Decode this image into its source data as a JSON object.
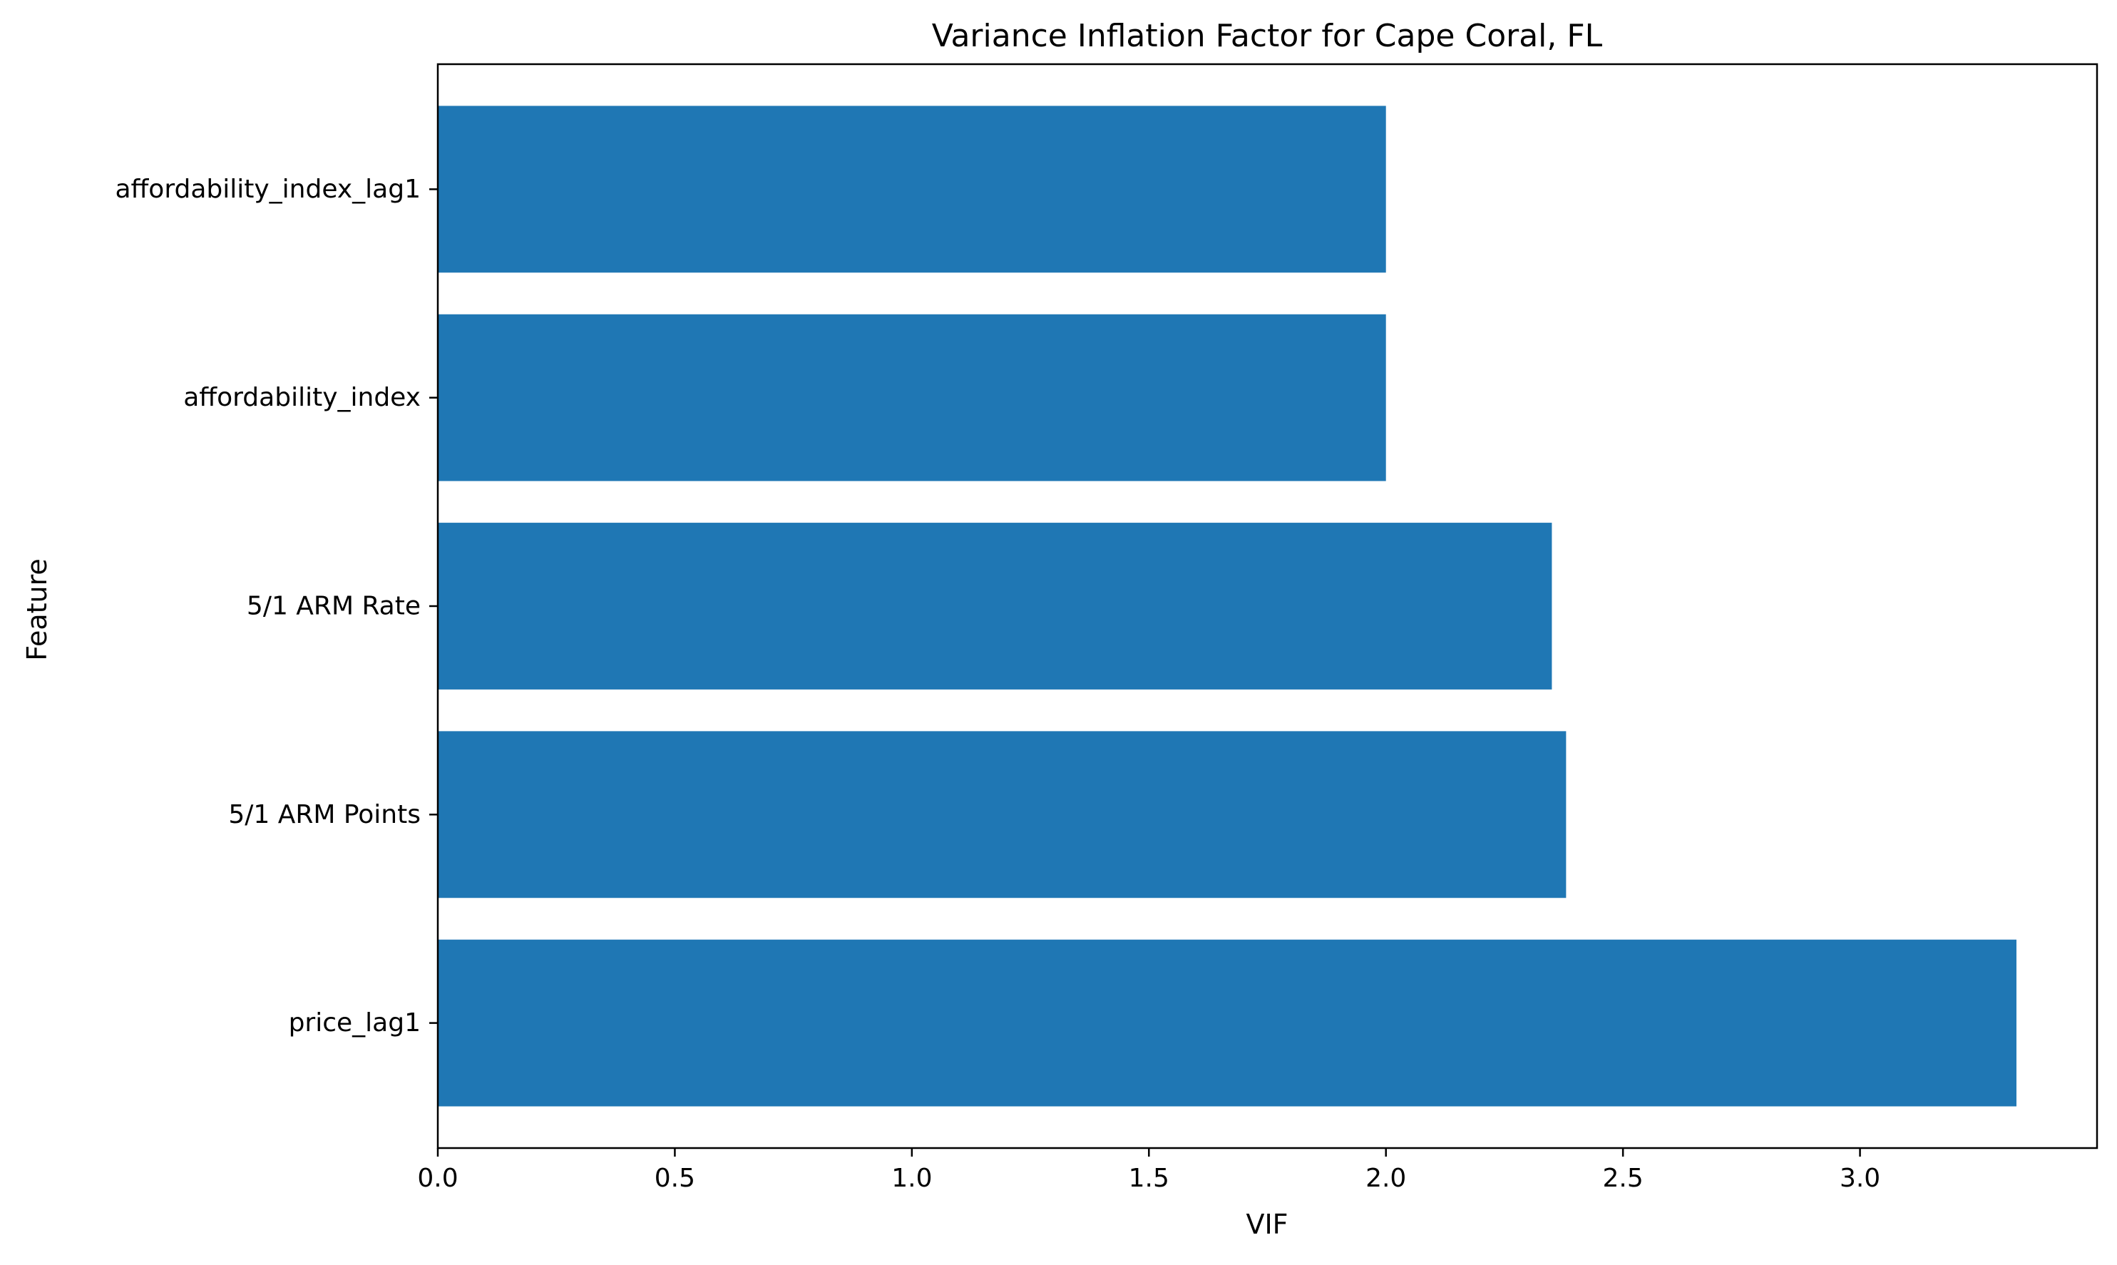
{
  "chart_data": {
    "type": "bar",
    "orientation": "horizontal",
    "title": "Variance Inflation Factor for Cape Coral, FL",
    "xlabel": "VIF",
    "ylabel": "Feature",
    "categories": [
      "price_lag1",
      "5/1 ARM Points",
      "5/1 ARM Rate",
      "affordability_index",
      "affordability_index_lag1"
    ],
    "values": [
      3.33,
      2.38,
      2.35,
      2.0,
      2.0
    ],
    "x_ticks": [
      "0.0",
      "0.5",
      "1.0",
      "1.5",
      "2.0",
      "2.5",
      "3.0"
    ],
    "x_tick_values": [
      0,
      0.5,
      1.0,
      1.5,
      2.0,
      2.5,
      3.0
    ],
    "xlim": [
      0,
      3.5
    ],
    "grid": false,
    "bar_color": "#1f77b4"
  }
}
